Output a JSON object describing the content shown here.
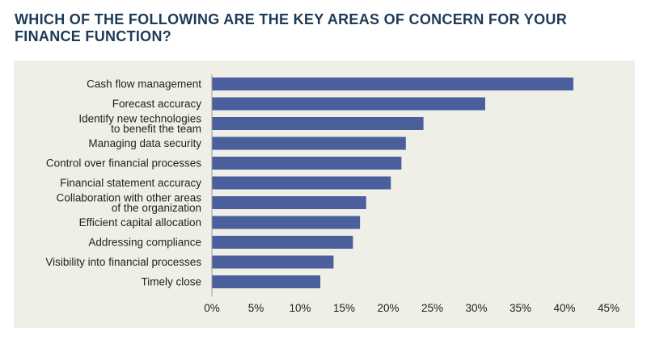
{
  "title_line1": "WHICH OF THE FOLLOWING ARE THE KEY AREAS OF CONCERN FOR YOUR",
  "title_line2": "FINANCE FUNCTION?",
  "colors": {
    "bar": "#4a5f9c",
    "panel_background": "#f0efe7",
    "title": "#1f3a57"
  },
  "chart_data": {
    "type": "bar",
    "orientation": "horizontal",
    "title": "WHICH OF THE FOLLOWING ARE THE KEY AREAS OF CONCERN FOR YOUR FINANCE FUNCTION?",
    "xlabel": "",
    "ylabel": "",
    "xlim": [
      0,
      45
    ],
    "x_tick_values": [
      0,
      5,
      10,
      15,
      20,
      25,
      30,
      35,
      40,
      45
    ],
    "x_tick_labels": [
      "0%",
      "5%",
      "10%",
      "15%",
      "20%",
      "25%",
      "30%",
      "35%",
      "40%",
      "45%"
    ],
    "grid": false,
    "categories": [
      [
        "Cash flow management"
      ],
      [
        "Forecast accuracy"
      ],
      [
        "Identify new technologies",
        "to benefit the team"
      ],
      [
        "Managing data security"
      ],
      [
        "Control over financial processes"
      ],
      [
        "Financial statement accuracy"
      ],
      [
        "Collaboration with other areas",
        "of the organization"
      ],
      [
        "Efficient capital allocation"
      ],
      [
        "Addressing compliance"
      ],
      [
        "Visibility into financial processes"
      ],
      [
        "Timely close"
      ]
    ],
    "values": [
      41.0,
      31.0,
      24.0,
      22.0,
      21.5,
      20.3,
      17.5,
      16.8,
      16.0,
      13.8,
      12.3
    ]
  }
}
